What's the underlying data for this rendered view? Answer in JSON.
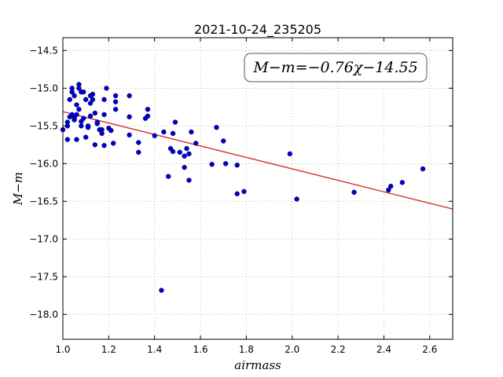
{
  "chart_data": {
    "type": "scatter",
    "title": "2021-10-24_235205",
    "xlabel": "airmass",
    "ylabel": "M−m",
    "xlim": [
      1.0,
      2.7
    ],
    "ylim": [
      -18.33,
      -14.33
    ],
    "y_inverted": true,
    "grid": true,
    "x_ticks": [
      1.0,
      1.2,
      1.4,
      1.6,
      1.8,
      2.0,
      2.2,
      2.4,
      2.6
    ],
    "x_tick_labels": [
      "1.0",
      "1.2",
      "1.4",
      "1.6",
      "1.8",
      "2.0",
      "2.2",
      "2.4",
      "2.6"
    ],
    "y_ticks": [
      -14.5,
      -15.0,
      -15.5,
      -16.0,
      -16.5,
      -17.0,
      -17.5,
      -18.0
    ],
    "y_tick_labels": [
      "−14.5",
      "−15.0",
      "−15.5",
      "−16.0",
      "−16.5",
      "−17.0",
      "−17.5",
      "−18.0"
    ],
    "fit_line": {
      "slope": -0.76,
      "intercept": -14.55,
      "color": "#d62020"
    },
    "annotation": "M−m=−0.76χ−14.55",
    "point_color": "#0000cc",
    "points": [
      [
        1.0,
        -15.55
      ],
      [
        1.02,
        -15.5
      ],
      [
        1.02,
        -15.45
      ],
      [
        1.02,
        -15.68
      ],
      [
        1.03,
        -15.38
      ],
      [
        1.03,
        -15.15
      ],
      [
        1.04,
        -15.0
      ],
      [
        1.04,
        -15.05
      ],
      [
        1.04,
        -15.35
      ],
      [
        1.05,
        -15.1
      ],
      [
        1.05,
        -15.4
      ],
      [
        1.05,
        -15.42
      ],
      [
        1.06,
        -15.22
      ],
      [
        1.06,
        -15.35
      ],
      [
        1.06,
        -15.68
      ],
      [
        1.07,
        -14.95
      ],
      [
        1.07,
        -15.28
      ],
      [
        1.07,
        -15.0
      ],
      [
        1.08,
        -15.05
      ],
      [
        1.08,
        -15.5
      ],
      [
        1.08,
        -15.44
      ],
      [
        1.09,
        -15.4
      ],
      [
        1.09,
        -15.05
      ],
      [
        1.1,
        -15.15
      ],
      [
        1.1,
        -15.65
      ],
      [
        1.11,
        -15.52
      ],
      [
        1.11,
        -15.5
      ],
      [
        1.12,
        -15.37
      ],
      [
        1.12,
        -15.2
      ],
      [
        1.12,
        -15.1
      ],
      [
        1.13,
        -15.15
      ],
      [
        1.13,
        -15.08
      ],
      [
        1.14,
        -15.75
      ],
      [
        1.14,
        -15.33
      ],
      [
        1.15,
        -15.45
      ],
      [
        1.15,
        -15.47
      ],
      [
        1.16,
        -15.55
      ],
      [
        1.17,
        -15.55
      ],
      [
        1.17,
        -15.6
      ],
      [
        1.18,
        -15.35
      ],
      [
        1.18,
        -15.15
      ],
      [
        1.18,
        -15.76
      ],
      [
        1.19,
        -15.0
      ],
      [
        1.2,
        -15.53
      ],
      [
        1.21,
        -15.56
      ],
      [
        1.22,
        -15.73
      ],
      [
        1.23,
        -15.28
      ],
      [
        1.23,
        -15.1
      ],
      [
        1.23,
        -15.18
      ],
      [
        1.29,
        -15.1
      ],
      [
        1.29,
        -15.38
      ],
      [
        1.29,
        -15.62
      ],
      [
        1.33,
        -15.72
      ],
      [
        1.33,
        -15.85
      ],
      [
        1.36,
        -15.4
      ],
      [
        1.37,
        -15.37
      ],
      [
        1.37,
        -15.28
      ],
      [
        1.4,
        -15.63
      ],
      [
        1.43,
        -17.68
      ],
      [
        1.44,
        -15.58
      ],
      [
        1.46,
        -16.17
      ],
      [
        1.47,
        -15.8
      ],
      [
        1.48,
        -15.84
      ],
      [
        1.48,
        -15.6
      ],
      [
        1.49,
        -15.45
      ],
      [
        1.51,
        -15.85
      ],
      [
        1.53,
        -16.05
      ],
      [
        1.53,
        -15.9
      ],
      [
        1.54,
        -15.8
      ],
      [
        1.55,
        -15.87
      ],
      [
        1.55,
        -16.22
      ],
      [
        1.56,
        -15.58
      ],
      [
        1.58,
        -15.73
      ],
      [
        1.65,
        -16.01
      ],
      [
        1.67,
        -15.52
      ],
      [
        1.7,
        -15.7
      ],
      [
        1.71,
        -16.0
      ],
      [
        1.76,
        -16.02
      ],
      [
        1.76,
        -16.4
      ],
      [
        1.79,
        -16.37
      ],
      [
        1.99,
        -15.87
      ],
      [
        2.02,
        -16.47
      ],
      [
        2.27,
        -16.38
      ],
      [
        2.42,
        -16.35
      ],
      [
        2.43,
        -16.3
      ],
      [
        2.48,
        -16.25
      ],
      [
        2.57,
        -16.07
      ]
    ]
  }
}
